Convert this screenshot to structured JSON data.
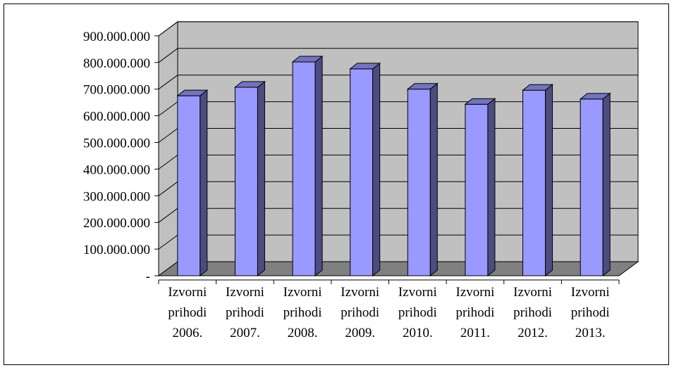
{
  "chart_data": {
    "type": "bar",
    "title": "",
    "xlabel": "",
    "ylabel": "",
    "categories": [
      [
        "Izvorni",
        "prihodi",
        "2006."
      ],
      [
        "Izvorni",
        "prihodi",
        "2007."
      ],
      [
        "Izvorni",
        "prihodi",
        "2008."
      ],
      [
        "Izvorni",
        "prihodi",
        "2009."
      ],
      [
        "Izvorni",
        "prihodi",
        "2010."
      ],
      [
        "Izvorni",
        "prihodi",
        "2011."
      ],
      [
        "Izvorni",
        "prihodi",
        "2012."
      ],
      [
        "Izvorni",
        "prihodi",
        "2013."
      ]
    ],
    "values": [
      675000000,
      707000000,
      802000000,
      776000000,
      700000000,
      643000000,
      696000000,
      663000000
    ],
    "ylim": [
      0,
      900000000
    ],
    "yticks": [
      0,
      100000000,
      200000000,
      300000000,
      400000000,
      500000000,
      600000000,
      700000000,
      800000000,
      900000000
    ],
    "ytick_labels": [
      "-",
      "100.000.000",
      "200.000.000",
      "300.000.000",
      "400.000.000",
      "500.000.000",
      "600.000.000",
      "700.000.000",
      "800.000.000",
      "900.000.000"
    ],
    "grid": true,
    "legend": "none",
    "colors": {
      "bar_front": "#9999ff",
      "bar_side": "#4c4c80",
      "bar_top": "#7373c0",
      "back_wall": "#c0c0c0",
      "floor": "#808080",
      "grid": "#000000"
    }
  }
}
